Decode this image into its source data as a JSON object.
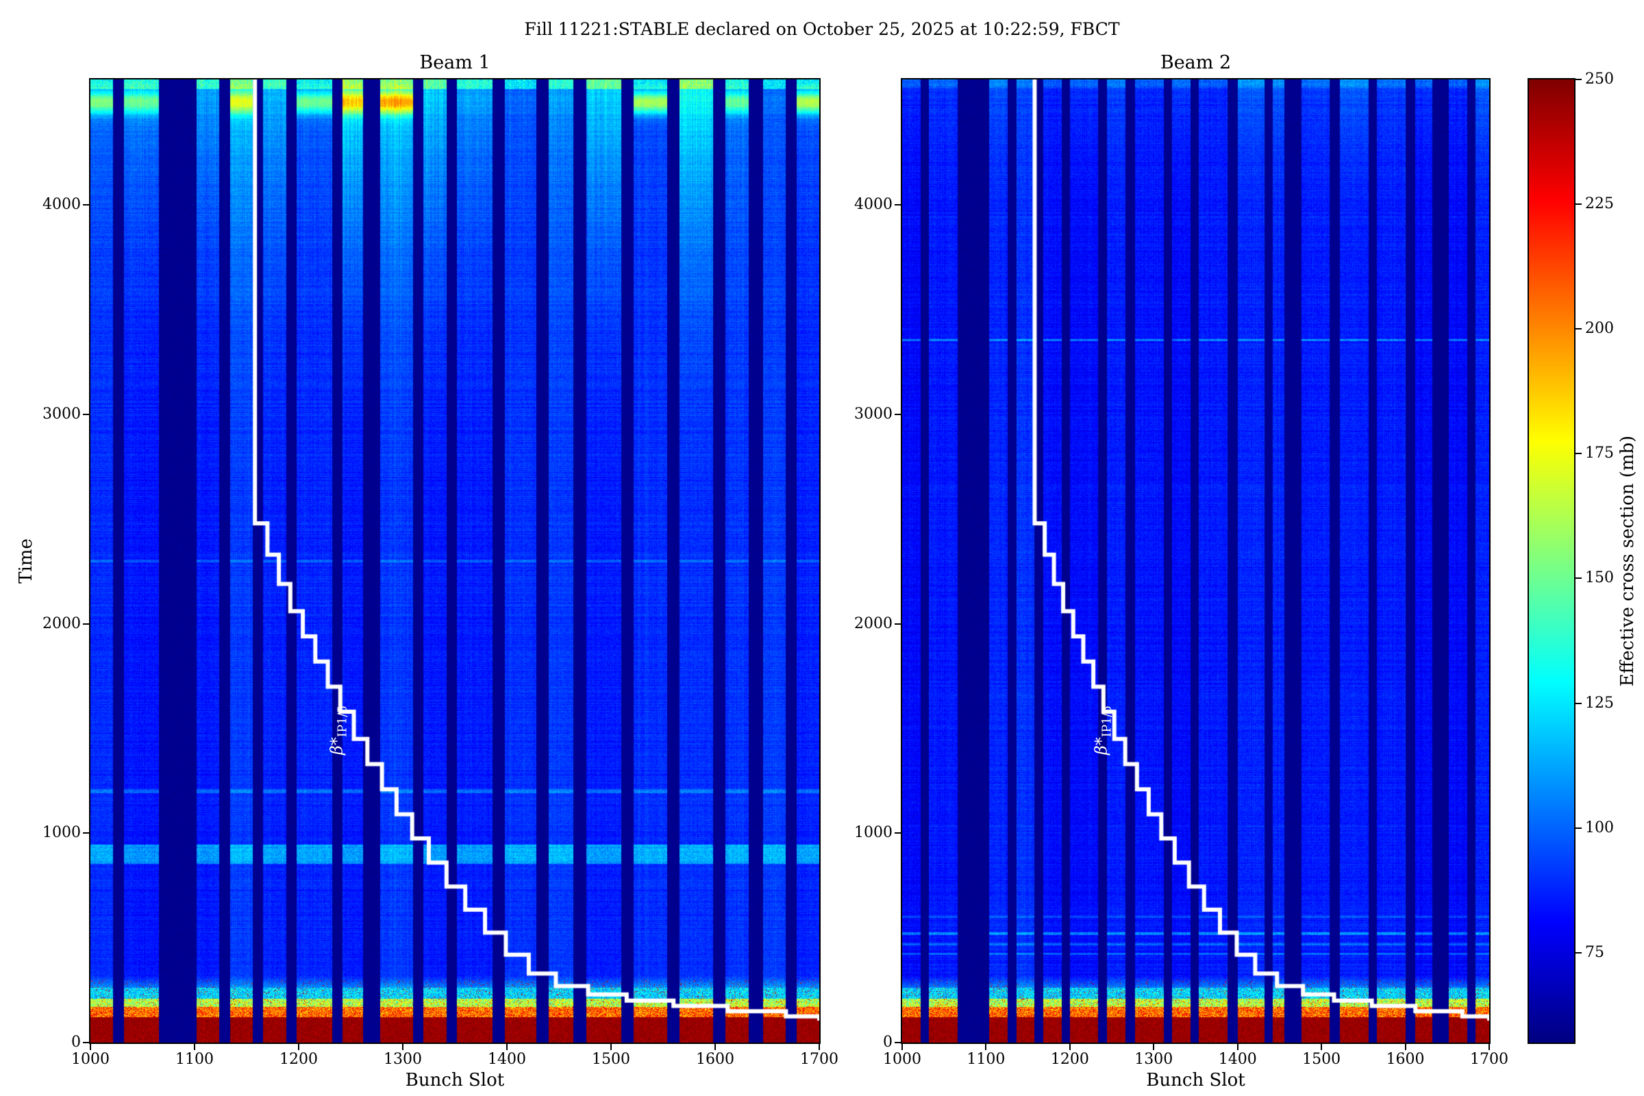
{
  "figure": {
    "title": "Fill 11221:STABLE declared on October 25, 2025 at 10:22:59, FBCT"
  },
  "chart_data": [
    {
      "type": "heatmap",
      "panel": "left",
      "title": "Beam 1",
      "xlabel": "Bunch Slot",
      "ylabel": "Time",
      "xlim": [
        1000,
        1700
      ],
      "ylim": [
        0,
        4600
      ],
      "xticks": [
        1000,
        1100,
        1200,
        1300,
        1400,
        1500,
        1600,
        1700
      ],
      "yticks": [
        0,
        1000,
        2000,
        3000,
        4000
      ],
      "colormap": "jet",
      "vmin": 57,
      "vmax": 250,
      "background_value": 60,
      "train_base_value": 88,
      "bunch_trains": [
        [
          1000,
          1022
        ],
        [
          1032,
          1066
        ],
        [
          1102,
          1124
        ],
        [
          1134,
          1156
        ],
        [
          1166,
          1188
        ],
        [
          1198,
          1232
        ],
        [
          1242,
          1262
        ],
        [
          1278,
          1310
        ],
        [
          1320,
          1342
        ],
        [
          1352,
          1386
        ],
        [
          1398,
          1428
        ],
        [
          1440,
          1464
        ],
        [
          1476,
          1510
        ],
        [
          1522,
          1554
        ],
        [
          1566,
          1598
        ],
        [
          1610,
          1632
        ],
        [
          1646,
          1668
        ],
        [
          1678,
          1700
        ]
      ],
      "bottom_hot_band": {
        "time_range": [
          0,
          320
        ],
        "peak_value": 250
      },
      "horizontal_features": [
        {
          "time": 900,
          "halfwidth": 45,
          "boost": 24
        },
        {
          "time": 1200,
          "halfwidth": 10,
          "boost": 16
        },
        {
          "time": 2300,
          "halfwidth": 8,
          "boost": 12
        }
      ],
      "top_brightening": {
        "start_time": 2600,
        "max_boost": 36,
        "hotspot_time": 4490,
        "hotspot_sigma": 55,
        "hotspot_max": 85,
        "edge_time": 4555,
        "edge_boost": 26
      },
      "overlay_line": {
        "label_beta": "β*",
        "label_sub": "IP1/5",
        "color": "#ffffff",
        "points": [
          [
            1158,
            4600
          ],
          [
            1158,
            2480
          ],
          [
            1170,
            2480
          ],
          [
            1170,
            2330
          ],
          [
            1181,
            2330
          ],
          [
            1181,
            2190
          ],
          [
            1192,
            2190
          ],
          [
            1192,
            2060
          ],
          [
            1204,
            2060
          ],
          [
            1204,
            1940
          ],
          [
            1216,
            1940
          ],
          [
            1216,
            1820
          ],
          [
            1228,
            1820
          ],
          [
            1228,
            1700
          ],
          [
            1240,
            1700
          ],
          [
            1240,
            1580
          ],
          [
            1253,
            1580
          ],
          [
            1253,
            1450
          ],
          [
            1266,
            1450
          ],
          [
            1266,
            1330
          ],
          [
            1280,
            1330
          ],
          [
            1280,
            1210
          ],
          [
            1294,
            1210
          ],
          [
            1294,
            1090
          ],
          [
            1309,
            1090
          ],
          [
            1309,
            975
          ],
          [
            1325,
            975
          ],
          [
            1325,
            860
          ],
          [
            1342,
            860
          ],
          [
            1342,
            745
          ],
          [
            1360,
            745
          ],
          [
            1360,
            635
          ],
          [
            1379,
            635
          ],
          [
            1379,
            525
          ],
          [
            1399,
            525
          ],
          [
            1399,
            420
          ],
          [
            1421,
            420
          ],
          [
            1421,
            330
          ],
          [
            1447,
            330
          ],
          [
            1447,
            270
          ],
          [
            1478,
            270
          ],
          [
            1478,
            230
          ],
          [
            1515,
            230
          ],
          [
            1515,
            200
          ],
          [
            1560,
            200
          ],
          [
            1560,
            175
          ],
          [
            1612,
            175
          ],
          [
            1612,
            150
          ],
          [
            1668,
            150
          ],
          [
            1668,
            125
          ],
          [
            1700,
            125
          ],
          [
            1700,
            105
          ]
        ]
      }
    },
    {
      "type": "heatmap",
      "panel": "right",
      "title": "Beam 2",
      "xlabel": "Bunch Slot",
      "ylabel": "",
      "xlim": [
        1000,
        1700
      ],
      "ylim": [
        0,
        4600
      ],
      "xticks": [
        1000,
        1100,
        1200,
        1300,
        1400,
        1500,
        1600,
        1700
      ],
      "yticks": [
        0,
        1000,
        2000,
        3000,
        4000
      ],
      "colormap": "jet",
      "vmin": 57,
      "vmax": 250,
      "background_value": 60,
      "train_base_value": 86,
      "bunch_trains": [
        [
          1000,
          1022
        ],
        [
          1032,
          1066
        ],
        [
          1104,
          1126
        ],
        [
          1136,
          1158
        ],
        [
          1168,
          1190
        ],
        [
          1200,
          1234
        ],
        [
          1244,
          1266
        ],
        [
          1278,
          1312
        ],
        [
          1322,
          1344
        ],
        [
          1354,
          1388
        ],
        [
          1400,
          1432
        ],
        [
          1442,
          1456
        ],
        [
          1476,
          1510
        ],
        [
          1522,
          1556
        ],
        [
          1566,
          1600
        ],
        [
          1612,
          1632
        ],
        [
          1652,
          1674
        ],
        [
          1684,
          1700
        ]
      ],
      "bottom_hot_band": {
        "time_range": [
          0,
          320
        ],
        "peak_value": 250
      },
      "horizontal_features": [
        {
          "time": 3355,
          "halfwidth": 6,
          "boost": 22
        },
        {
          "time": 600,
          "halfwidth": 4,
          "boost": 10
        },
        {
          "time": 520,
          "halfwidth": 6,
          "boost": 22
        },
        {
          "time": 468,
          "halfwidth": 5,
          "boost": 18
        },
        {
          "time": 424,
          "halfwidth": 4,
          "boost": 14
        }
      ],
      "top_brightening": {
        "start_time": 3800,
        "max_boost": 10,
        "hotspot_time": 4590,
        "hotspot_sigma": 40,
        "hotspot_max": 0,
        "edge_time": 4560,
        "edge_boost": 10
      },
      "overlay_line": {
        "label_beta": "β*",
        "label_sub": "IP1/5",
        "color": "#ffffff",
        "points": [
          [
            1158,
            4600
          ],
          [
            1158,
            2480
          ],
          [
            1170,
            2480
          ],
          [
            1170,
            2330
          ],
          [
            1181,
            2330
          ],
          [
            1181,
            2190
          ],
          [
            1192,
            2190
          ],
          [
            1192,
            2060
          ],
          [
            1204,
            2060
          ],
          [
            1204,
            1940
          ],
          [
            1216,
            1940
          ],
          [
            1216,
            1820
          ],
          [
            1228,
            1820
          ],
          [
            1228,
            1700
          ],
          [
            1240,
            1700
          ],
          [
            1240,
            1580
          ],
          [
            1253,
            1580
          ],
          [
            1253,
            1450
          ],
          [
            1266,
            1450
          ],
          [
            1266,
            1330
          ],
          [
            1280,
            1330
          ],
          [
            1280,
            1210
          ],
          [
            1294,
            1210
          ],
          [
            1294,
            1090
          ],
          [
            1309,
            1090
          ],
          [
            1309,
            975
          ],
          [
            1325,
            975
          ],
          [
            1325,
            860
          ],
          [
            1342,
            860
          ],
          [
            1342,
            745
          ],
          [
            1360,
            745
          ],
          [
            1360,
            635
          ],
          [
            1379,
            635
          ],
          [
            1379,
            525
          ],
          [
            1399,
            525
          ],
          [
            1399,
            420
          ],
          [
            1421,
            420
          ],
          [
            1421,
            330
          ],
          [
            1447,
            330
          ],
          [
            1447,
            270
          ],
          [
            1478,
            270
          ],
          [
            1478,
            230
          ],
          [
            1515,
            230
          ],
          [
            1515,
            200
          ],
          [
            1560,
            200
          ],
          [
            1560,
            175
          ],
          [
            1612,
            175
          ],
          [
            1612,
            150
          ],
          [
            1668,
            150
          ],
          [
            1668,
            125
          ],
          [
            1700,
            125
          ],
          [
            1700,
            105
          ]
        ]
      }
    }
  ],
  "colorbar": {
    "label": "Effective cross section (mb)",
    "vmin": 57,
    "vmax": 250,
    "ticks": [
      75,
      100,
      125,
      150,
      175,
      200,
      225,
      250
    ],
    "colormap": "jet"
  }
}
